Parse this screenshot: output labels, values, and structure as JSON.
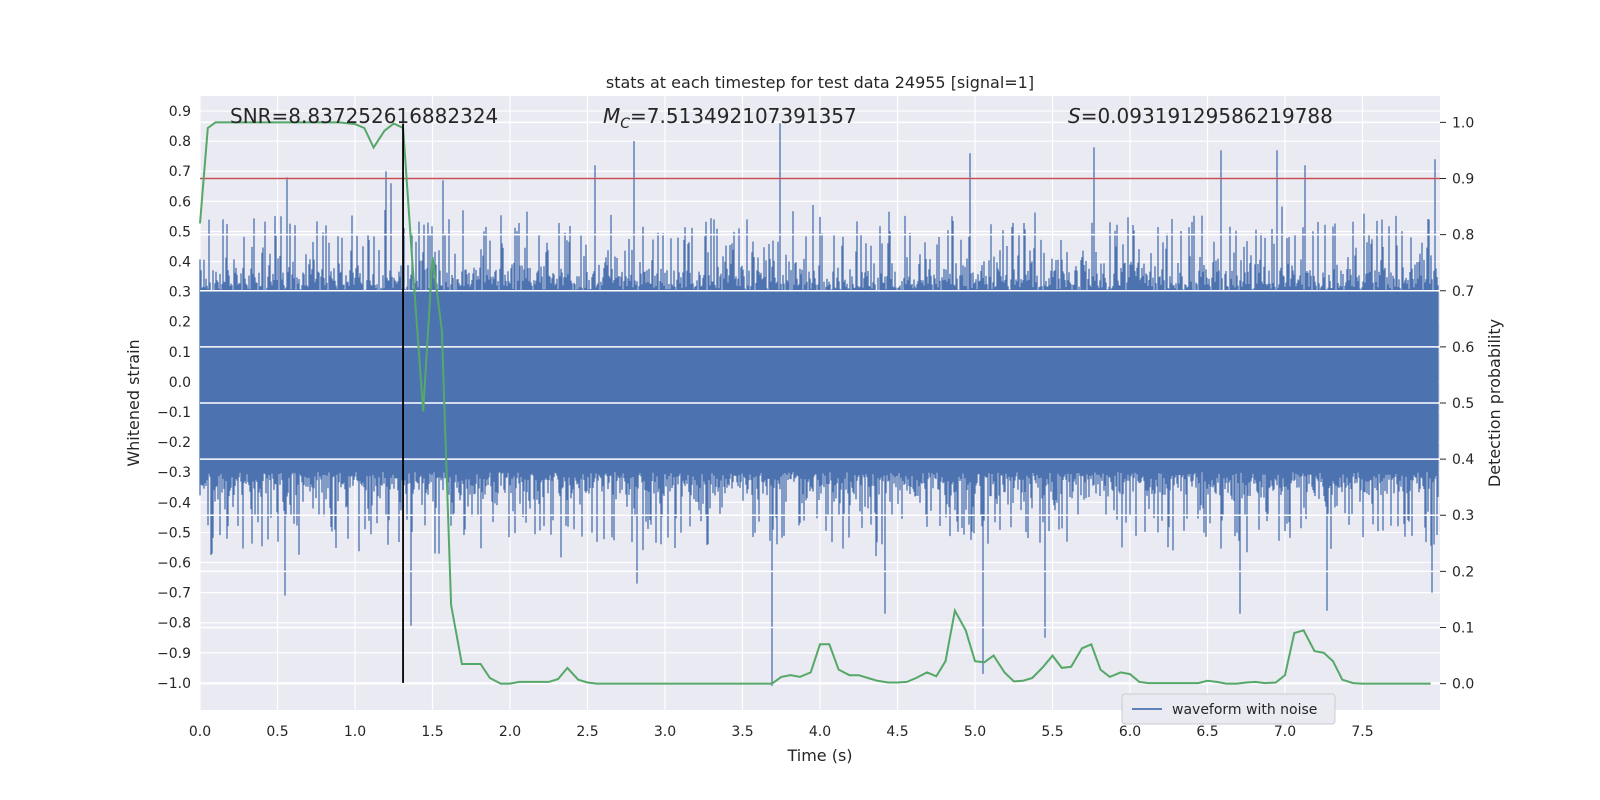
{
  "chart_data": {
    "type": "line",
    "title": "stats at each timestep for test data 24955 [signal=1]",
    "xlabel": "Time (s)",
    "ylabel_left": "Whitened strain",
    "ylabel_right": "Detection probability",
    "xlim": [
      0.0,
      8.0
    ],
    "ylim_left": [
      -1.09,
      0.95
    ],
    "ylim_right": [
      -0.047,
      1.047
    ],
    "x_ticks": [
      "0.0",
      "0.5",
      "1.0",
      "1.5",
      "2.0",
      "2.5",
      "3.0",
      "3.5",
      "4.0",
      "4.5",
      "5.0",
      "5.5",
      "6.0",
      "6.5",
      "7.0",
      "7.5"
    ],
    "y_ticks_left": [
      "−1.0",
      "−0.9",
      "−0.8",
      "−0.7",
      "−0.6",
      "−0.5",
      "−0.4",
      "−0.3",
      "−0.2",
      "−0.1",
      "0.0",
      "0.1",
      "0.2",
      "0.3",
      "0.4",
      "0.5",
      "0.6",
      "0.7",
      "0.8",
      "0.9"
    ],
    "y_ticks_right": [
      "0.0",
      "0.1",
      "0.2",
      "0.3",
      "0.4",
      "0.5",
      "0.6",
      "0.7",
      "0.8",
      "0.9",
      "1.0"
    ],
    "grid": true,
    "legend": {
      "placement": "lower-right",
      "entries": [
        "waveform with noise"
      ]
    },
    "annotations": {
      "snr": "SNR=8.837252616882324",
      "mc_symbol": "M",
      "mc_sub": "C",
      "mc_value": "=7.513492107391357",
      "s_symbol": "S",
      "s_value": "=0.09319129586219788"
    },
    "threshold": {
      "value": 0.9,
      "color": "#c44e52"
    },
    "marker_time": 1.31,
    "series": [
      {
        "name": "waveform with noise",
        "color": "#4c72b0",
        "duration_s": 8.0,
        "typical_amplitude": 0.3,
        "spikes": [
          {
            "t": 0.56,
            "v": 0.68
          },
          {
            "t": 0.55,
            "v": -0.71
          },
          {
            "t": 1.2,
            "v": 0.7
          },
          {
            "t": 1.23,
            "v": 0.66
          },
          {
            "t": 1.36,
            "v": -0.81
          },
          {
            "t": 1.57,
            "v": 0.67
          },
          {
            "t": 2.55,
            "v": 0.72
          },
          {
            "t": 2.8,
            "v": 0.8
          },
          {
            "t": 2.82,
            "v": -0.67
          },
          {
            "t": 3.74,
            "v": 0.86
          },
          {
            "t": 3.69,
            "v": -1.01
          },
          {
            "t": 4.42,
            "v": -0.77
          },
          {
            "t": 4.97,
            "v": 0.76
          },
          {
            "t": 5.05,
            "v": -0.97
          },
          {
            "t": 5.45,
            "v": -0.85
          },
          {
            "t": 5.77,
            "v": 0.78
          },
          {
            "t": 6.59,
            "v": 0.77
          },
          {
            "t": 6.71,
            "v": -0.77
          },
          {
            "t": 6.95,
            "v": 0.77
          },
          {
            "t": 7.13,
            "v": 0.72
          },
          {
            "t": 7.27,
            "v": -0.76
          },
          {
            "t": 7.97,
            "v": 0.74
          },
          {
            "t": 7.95,
            "v": -0.7
          }
        ]
      },
      {
        "name": "",
        "color": "#55a868",
        "axis": "right",
        "x": [
          0.0,
          0.05,
          0.1,
          0.2,
          0.3,
          0.4,
          0.5,
          0.6,
          0.7,
          0.8,
          0.9,
          1.0,
          1.06,
          1.12,
          1.19,
          1.25,
          1.31,
          1.37,
          1.44,
          1.5,
          1.56,
          1.62,
          1.69,
          1.75,
          1.81,
          1.87,
          1.94,
          2.0,
          2.06,
          2.12,
          2.19,
          2.25,
          2.31,
          2.37,
          2.44,
          2.5,
          2.56,
          2.62,
          2.69,
          2.75,
          2.81,
          2.87,
          2.94,
          3.0,
          3.06,
          3.12,
          3.19,
          3.25,
          3.31,
          3.37,
          3.44,
          3.5,
          3.56,
          3.62,
          3.69,
          3.75,
          3.81,
          3.87,
          3.94,
          4.0,
          4.06,
          4.12,
          4.19,
          4.25,
          4.31,
          4.37,
          4.44,
          4.5,
          4.56,
          4.62,
          4.69,
          4.75,
          4.81,
          4.87,
          4.94,
          5.0,
          5.06,
          5.12,
          5.19,
          5.25,
          5.31,
          5.37,
          5.44,
          5.5,
          5.56,
          5.62,
          5.69,
          5.75,
          5.81,
          5.87,
          5.94,
          6.0,
          6.06,
          6.12,
          6.19,
          6.25,
          6.31,
          6.37,
          6.44,
          6.5,
          6.56,
          6.62,
          6.69,
          6.75,
          6.81,
          6.87,
          6.94,
          7.0,
          7.06,
          7.12,
          7.19,
          7.25,
          7.31,
          7.37,
          7.44,
          7.5,
          7.56,
          7.62,
          7.69,
          7.75,
          7.81,
          7.87,
          7.94
        ],
        "values": [
          0.82,
          0.99,
          1.0,
          1.0,
          1.0,
          1.0,
          1.0,
          1.0,
          1.0,
          1.0,
          1.0,
          0.997,
          0.99,
          0.955,
          0.985,
          0.998,
          0.99,
          0.75,
          0.485,
          0.76,
          0.63,
          0.14,
          0.035,
          0.035,
          0.035,
          0.01,
          0.0,
          0.0,
          0.003,
          0.003,
          0.003,
          0.003,
          0.008,
          0.028,
          0.007,
          0.002,
          0.0,
          0.0,
          0.0,
          0.0,
          0.0,
          0.0,
          0.0,
          0.0,
          0.0,
          0.0,
          0.0,
          0.0,
          0.0,
          0.0,
          0.0,
          0.0,
          0.0,
          0.0,
          0.0,
          0.012,
          0.015,
          0.012,
          0.02,
          0.07,
          0.07,
          0.025,
          0.015,
          0.015,
          0.01,
          0.005,
          0.002,
          0.002,
          0.003,
          0.01,
          0.02,
          0.013,
          0.04,
          0.13,
          0.095,
          0.04,
          0.038,
          0.05,
          0.02,
          0.004,
          0.005,
          0.01,
          0.03,
          0.05,
          0.028,
          0.03,
          0.063,
          0.07,
          0.025,
          0.012,
          0.02,
          0.017,
          0.003,
          0.001,
          0.001,
          0.001,
          0.001,
          0.001,
          0.001,
          0.005,
          0.003,
          0.0,
          0.0,
          0.002,
          0.003,
          0.001,
          0.002,
          0.015,
          0.09,
          0.095,
          0.058,
          0.055,
          0.04,
          0.007,
          0.001,
          0.0,
          0.0,
          0.0,
          0.0,
          0.0,
          0.0,
          0.0,
          0.0
        ]
      }
    ]
  }
}
